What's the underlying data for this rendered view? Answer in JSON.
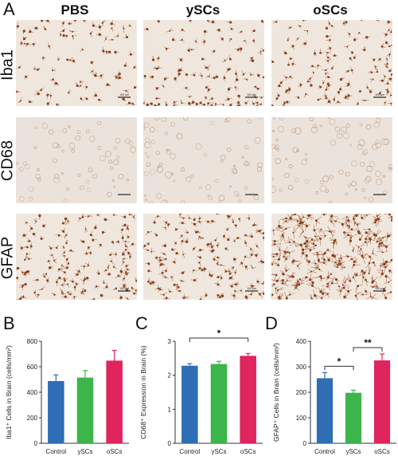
{
  "panels": {
    "a": "A",
    "b": "B",
    "c": "C",
    "d": "D"
  },
  "columns": [
    "PBS",
    "ySCs",
    "oSCs"
  ],
  "rows": [
    "Iba1",
    "CD68",
    "GFAP"
  ],
  "scale_bar_label": "100 µm",
  "colors": {
    "control": "#2f6db5",
    "yscs": "#3cb54a",
    "oscs": "#e0245e",
    "stain": "#a0522d",
    "tissue": "#efe6dc"
  },
  "chart_data": [
    {
      "type": "bar",
      "panel": "B",
      "categories": [
        "Control",
        "ySCs",
        "oSCs"
      ],
      "values": [
        488,
        515,
        648
      ],
      "errors": [
        48,
        55,
        80
      ],
      "ylabel": "Iba1⁺ Cells in Brain (cells/mm²)",
      "ylim": [
        0,
        800
      ],
      "yticks": [
        0,
        200,
        400,
        600,
        800
      ],
      "significance": []
    },
    {
      "type": "bar",
      "panel": "C",
      "categories": [
        "Control",
        "ySCs",
        "oSCs"
      ],
      "values": [
        2.28,
        2.33,
        2.57
      ],
      "errors": [
        0.06,
        0.08,
        0.07
      ],
      "ylabel": "CD68⁺ Expression in Brain (%)",
      "ylim": [
        0,
        3
      ],
      "yticks": [
        0,
        1,
        2,
        3
      ],
      "significance": [
        {
          "from": 0,
          "to": 2,
          "label": "*"
        }
      ]
    },
    {
      "type": "bar",
      "panel": "D",
      "categories": [
        "Control",
        "ySCs",
        "oSCs"
      ],
      "values": [
        255,
        198,
        325
      ],
      "errors": [
        22,
        10,
        25
      ],
      "ylabel": "GFAP⁺ Cells in Brain (cells/mm²)",
      "ylim": [
        0,
        400
      ],
      "yticks": [
        0,
        100,
        200,
        300,
        400
      ],
      "significance": [
        {
          "from": 0,
          "to": 1,
          "label": "*"
        },
        {
          "from": 1,
          "to": 2,
          "label": "**"
        }
      ]
    }
  ]
}
